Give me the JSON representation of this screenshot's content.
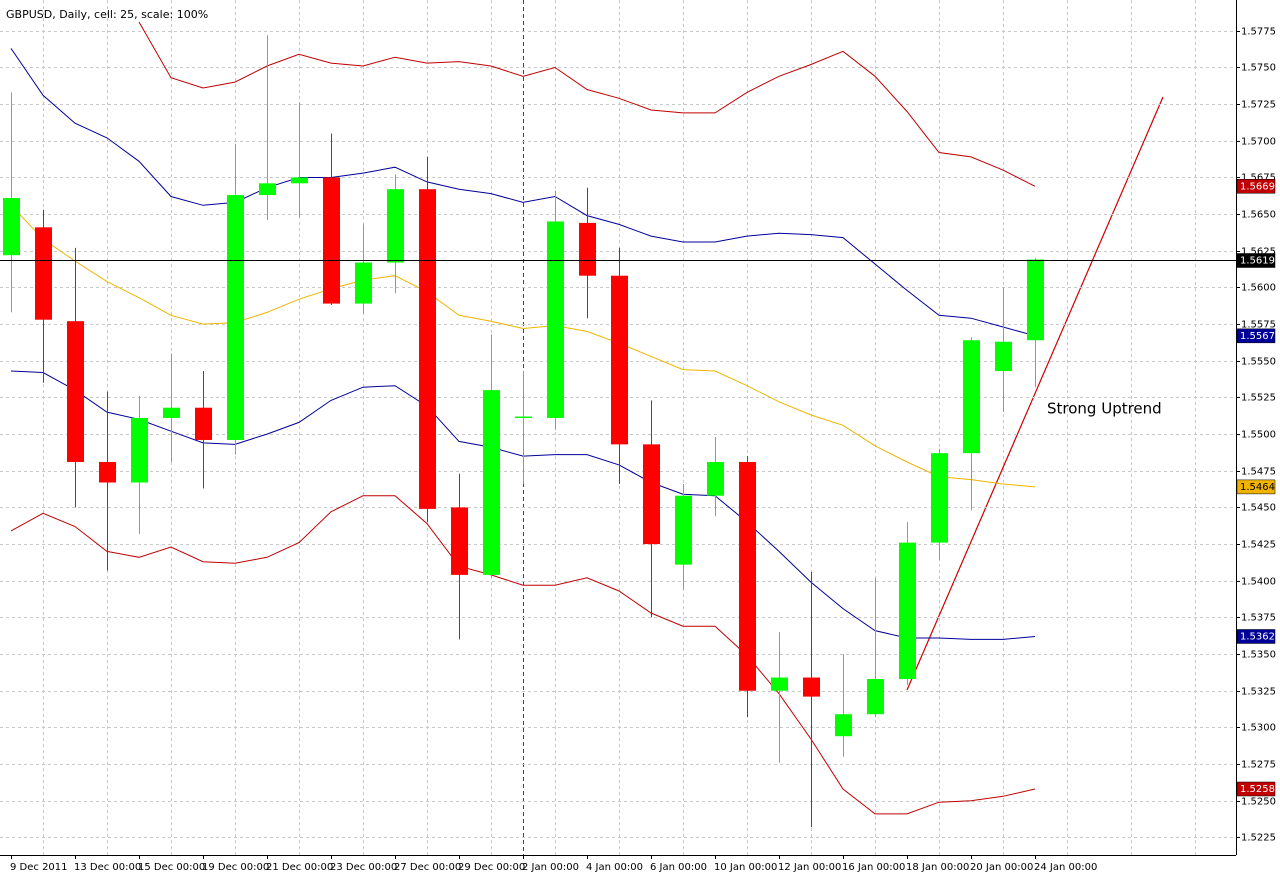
{
  "chart_data": {
    "type": "candlestick",
    "title": "GBPUSD, Daily, cell: 25, scale: 100%",
    "annotation": "Strong Uptrend",
    "up_color": "#00ff00",
    "down_color": "#ff0000",
    "grid": true,
    "categories": [
      "9 Dec 2011",
      null,
      "13 Dec 00:00",
      null,
      "15 Dec 00:00",
      null,
      "19 Dec 00:00",
      null,
      "21 Dec 00:00",
      null,
      "23 Dec 00:00",
      null,
      "27 Dec 00:00",
      null,
      "29 Dec 00:00",
      null,
      "2 Jan 00:00",
      null,
      "4 Jan 00:00",
      null,
      "6 Jan 00:00",
      null,
      "10 Jan 00:00",
      null,
      "12 Jan 00:00",
      null,
      "16 Jan 00:00",
      null,
      "18 Jan 00:00",
      null,
      "20 Jan 00:00",
      null,
      "24 Jan 00:00"
    ],
    "open": [
      1.5622,
      1.5641,
      1.5577,
      1.5481,
      1.5467,
      1.5511,
      1.5518,
      1.5496,
      1.5663,
      1.5671,
      1.5675,
      1.5589,
      1.5617,
      1.5667,
      1.545,
      1.5404,
      1.5511,
      1.5511,
      1.5644,
      1.5608,
      1.5493,
      1.5411,
      1.5458,
      1.5481,
      1.5325,
      1.5334,
      1.5294,
      1.5309,
      1.5333,
      1.5426,
      1.5487,
      1.5543,
      1.5564
    ],
    "high": [
      1.5733,
      1.5653,
      1.5627,
      1.5529,
      1.5526,
      1.5555,
      1.5543,
      1.5698,
      1.5772,
      1.5726,
      1.5705,
      1.5643,
      1.5677,
      1.5689,
      1.5473,
      1.5568,
      1.5543,
      1.5666,
      1.5668,
      1.5627,
      1.5523,
      1.5466,
      1.5498,
      1.5485,
      1.5365,
      1.5406,
      1.535,
      1.5402,
      1.544,
      1.549,
      1.5566,
      1.56,
      1.562
    ],
    "low": [
      1.5583,
      1.5535,
      1.545,
      1.5407,
      1.5432,
      1.5481,
      1.5463,
      1.5486,
      1.5646,
      1.5648,
      1.5588,
      1.5582,
      1.5596,
      1.544,
      1.536,
      1.5402,
      1.5466,
      1.5503,
      1.5579,
      1.5466,
      1.5375,
      1.5394,
      1.5444,
      1.5307,
      1.5276,
      1.5232,
      1.528,
      1.5307,
      1.5329,
      1.5414,
      1.5448,
      1.5515,
      1.5532
    ],
    "close": [
      1.5661,
      1.5578,
      1.5481,
      1.5467,
      1.5511,
      1.5518,
      1.5496,
      1.5663,
      1.5671,
      1.5675,
      1.5589,
      1.5617,
      1.5667,
      1.5449,
      1.5404,
      1.553,
      1.5512,
      1.5645,
      1.5608,
      1.5493,
      1.5425,
      1.5458,
      1.5481,
      1.5325,
      1.5334,
      1.5321,
      1.5309,
      1.5333,
      1.5426,
      1.5487,
      1.5564,
      1.5563,
      1.5619
    ],
    "series": [
      {
        "color": "#c00000",
        "values": [
          null,
          null,
          null,
          null,
          1.5781,
          1.5743,
          1.5736,
          1.574,
          1.5751,
          1.5759,
          1.5753,
          1.5751,
          1.5757,
          1.5753,
          1.5754,
          1.5751,
          1.5744,
          1.575,
          1.5735,
          1.5729,
          1.5721,
          1.5719,
          1.5719,
          1.5733,
          1.5744,
          1.5752,
          1.5761,
          1.5744,
          1.572,
          1.5692,
          1.5689,
          1.568,
          1.5669
        ]
      },
      {
        "color": "#000099",
        "values": [
          1.5763,
          1.5731,
          1.5712,
          1.5702,
          1.5686,
          1.5662,
          1.5656,
          1.5658,
          1.5668,
          1.5675,
          1.5675,
          1.5678,
          1.5682,
          1.5672,
          1.5667,
          1.5664,
          1.5658,
          1.5662,
          1.5649,
          1.5643,
          1.5635,
          1.5631,
          1.5631,
          1.5635,
          1.5637,
          1.5636,
          1.5634,
          1.5616,
          1.5598,
          1.5581,
          1.5579,
          1.5573,
          1.5567
        ]
      },
      {
        "color": "#f0b400",
        "label_text": "#000000",
        "values": [
          1.5656,
          1.5633,
          1.5618,
          1.5604,
          1.5593,
          1.5581,
          1.5575,
          1.5576,
          1.5583,
          1.5592,
          1.5599,
          1.5605,
          1.5608,
          1.5597,
          1.5581,
          1.5577,
          1.5572,
          1.5574,
          1.557,
          1.5562,
          1.5553,
          1.5544,
          1.5543,
          1.5533,
          1.5522,
          1.5513,
          1.5506,
          1.5492,
          1.5481,
          1.5471,
          1.5469,
          1.5466,
          1.5464
        ]
      },
      {
        "color": "#000099",
        "values": [
          1.5543,
          1.5542,
          1.553,
          1.5515,
          1.551,
          1.5502,
          1.5494,
          1.5493,
          1.55,
          1.5508,
          1.5523,
          1.5532,
          1.5533,
          1.5519,
          1.5495,
          1.5491,
          1.5485,
          1.5486,
          1.5486,
          1.5479,
          1.5467,
          1.5459,
          1.5458,
          1.544,
          1.542,
          1.5399,
          1.5381,
          1.5366,
          1.5361,
          1.5361,
          1.536,
          1.536,
          1.5362
        ]
      },
      {
        "color": "#c00000",
        "values": [
          1.5434,
          1.5446,
          1.5437,
          1.542,
          1.5416,
          1.5423,
          1.5413,
          1.5412,
          1.5416,
          1.5426,
          1.5447,
          1.5458,
          1.5458,
          1.5439,
          1.541,
          1.5404,
          1.5397,
          1.5397,
          1.5402,
          1.5393,
          1.5378,
          1.5369,
          1.5369,
          1.5349,
          1.5323,
          1.5292,
          1.5258,
          1.5241,
          1.5241,
          1.5249,
          1.525,
          1.5253,
          1.5258
        ]
      }
    ],
    "ylim": [
      1.5213,
      1.5796
    ],
    "yticks": [
      1.5225,
      {
        "value": 1.525,
        "label": "1.5250"
      },
      1.5275,
      {
        "value": 1.53,
        "label": "1.5300"
      },
      1.5325,
      {
        "value": 1.535,
        "label": "1.5350"
      },
      1.5375,
      {
        "value": 1.54,
        "label": "1.5400"
      },
      1.5425,
      {
        "value": 1.545,
        "label": "1.5450"
      },
      1.5475,
      {
        "value": 1.55,
        "label": "1.5500"
      },
      1.5525,
      {
        "value": 1.555,
        "label": "1.5550"
      },
      1.5575,
      {
        "value": 1.56,
        "label": "1.5600"
      },
      1.5625,
      {
        "value": 1.565,
        "label": "1.5650"
      },
      1.5675,
      {
        "value": 1.57,
        "label": "1.5700"
      },
      1.5725,
      {
        "value": 1.575,
        "label": "1.5750"
      },
      1.5775
    ]
  }
}
